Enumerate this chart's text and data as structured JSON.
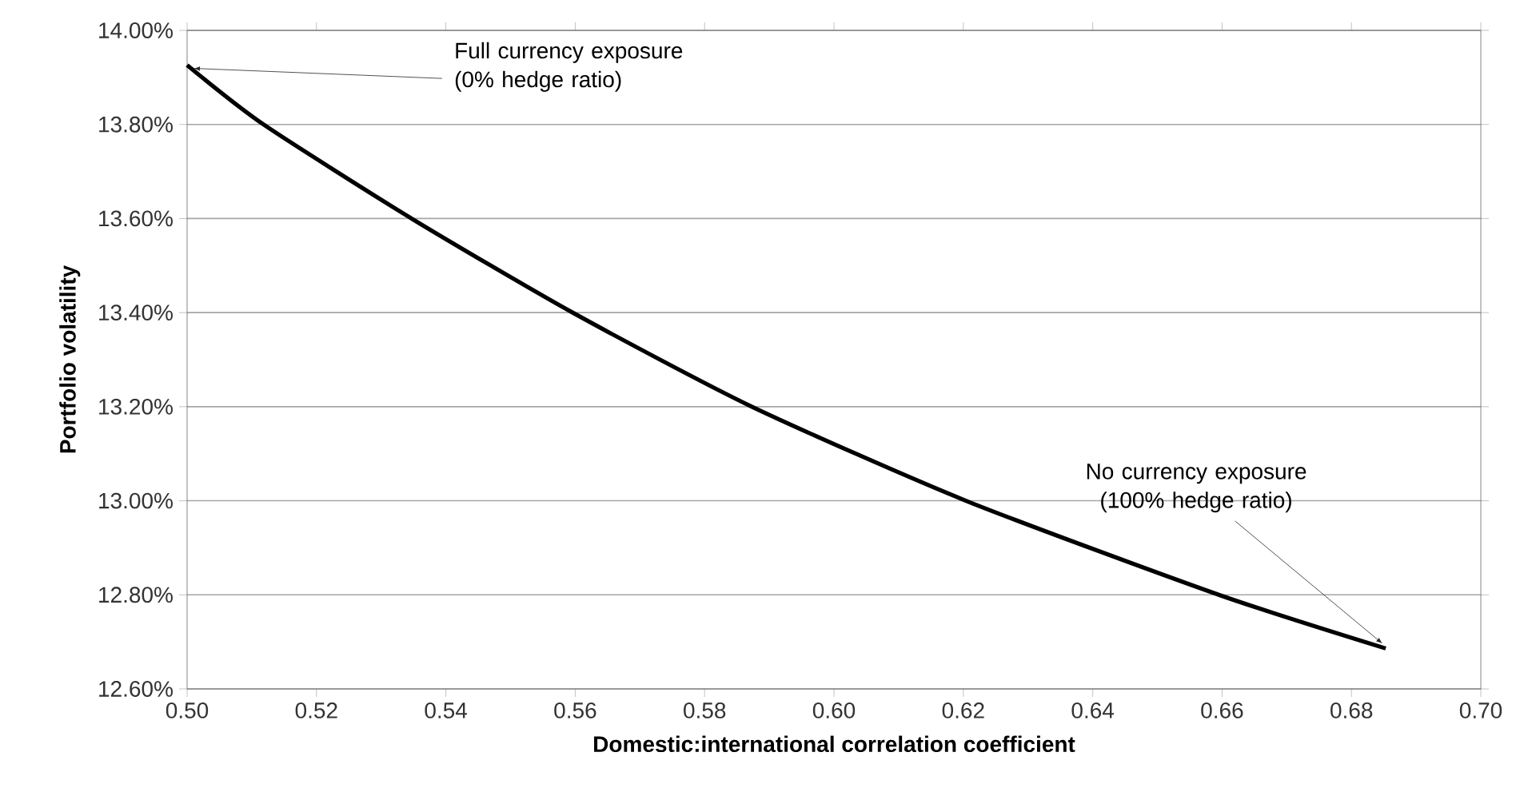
{
  "chart_data": {
    "type": "line",
    "xlabel": "Domestic:international correlation coefficient",
    "ylabel": "Portfolio volatility",
    "x": [
      0.5,
      0.5118,
      0.5347,
      0.5596,
      0.5873,
      0.6204,
      0.6595,
      0.6853
    ],
    "series": [
      {
        "color": "#000000",
        "values": [
          13.926,
          13.8,
          13.6,
          13.4,
          13.2,
          13.0,
          12.8,
          12.686
        ]
      }
    ],
    "xlim": [
      0.5,
      0.7
    ],
    "xticks": [
      {
        "value": 0.5,
        "label": "0.50"
      },
      {
        "value": 0.52,
        "label": "0.52"
      },
      {
        "value": 0.54,
        "label": "0.54"
      },
      {
        "value": 0.56,
        "label": "0.56"
      },
      {
        "value": 0.58,
        "label": "0.58"
      },
      {
        "value": 0.6,
        "label": "0.60"
      },
      {
        "value": 0.62,
        "label": "0.62"
      },
      {
        "value": 0.64,
        "label": "0.64"
      },
      {
        "value": 0.66,
        "label": "0.66"
      },
      {
        "value": 0.68,
        "label": "0.68"
      },
      {
        "value": 0.7,
        "label": "0.70"
      }
    ],
    "ylim": [
      12.6,
      14.0
    ],
    "yticks": [
      {
        "value": 12.6,
        "label": "12.60%"
      },
      {
        "value": 12.8,
        "label": "12.80%"
      },
      {
        "value": 13.0,
        "label": "13.00%"
      },
      {
        "value": 13.2,
        "label": "13.20%"
      },
      {
        "value": 13.4,
        "label": "13.40%"
      },
      {
        "value": 13.6,
        "label": "13.60%"
      },
      {
        "value": 13.8,
        "label": "13.80%"
      },
      {
        "value": 14.0,
        "label": "14.00%"
      }
    ],
    "grid": "y",
    "marker": "none",
    "line_style": "solid",
    "annotations": [
      {
        "text": "Full currency exposure (0% hedge ratio)",
        "x": 0.5,
        "y": 13.926
      },
      {
        "text": "No currency exposure (100% hedge ratio)",
        "x": 0.6853,
        "y": 12.686
      }
    ]
  }
}
